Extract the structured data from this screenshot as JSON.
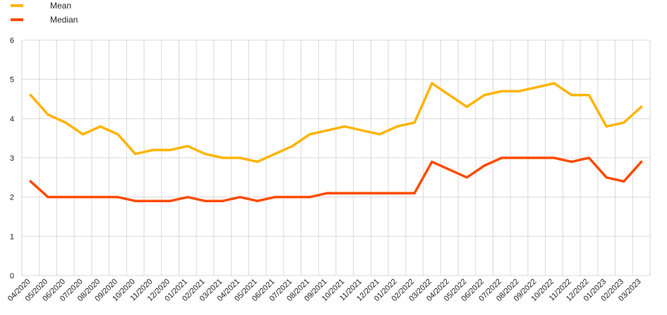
{
  "chart_data": {
    "type": "line",
    "title": "",
    "xlabel": "",
    "ylabel": "",
    "ylim": [
      0,
      6
    ],
    "yticks": [
      0,
      1,
      2,
      3,
      4,
      5,
      6
    ],
    "grid": true,
    "legend_position": "top-left",
    "categories": [
      "04/2020",
      "05/2020",
      "06/2020",
      "07/2020",
      "08/2020",
      "09/2020",
      "10/2020",
      "11/2020",
      "12/2020",
      "01/2021",
      "02/2021",
      "03/2021",
      "04/2021",
      "05/2021",
      "06/2021",
      "07/2021",
      "08/2021",
      "09/2021",
      "10/2021",
      "11/2021",
      "12/2021",
      "01/2022",
      "02/2022",
      "03/2022",
      "04/2022",
      "05/2022",
      "06/2022",
      "07/2022",
      "08/2022",
      "09/2022",
      "10/2022",
      "11/2022",
      "12/2022",
      "01/2023",
      "02/2023",
      "03/2023"
    ],
    "series": [
      {
        "name": "Mean",
        "color": "#FFB400",
        "values": [
          4.6,
          4.1,
          3.9,
          3.6,
          3.8,
          3.6,
          3.1,
          3.2,
          3.2,
          3.3,
          3.1,
          3.0,
          3.0,
          2.9,
          3.1,
          3.3,
          3.6,
          3.7,
          3.8,
          3.7,
          3.6,
          3.8,
          3.9,
          4.9,
          4.6,
          4.3,
          4.6,
          4.7,
          4.7,
          4.8,
          4.9,
          4.6,
          4.6,
          3.8,
          3.9,
          4.3
        ]
      },
      {
        "name": "Median",
        "color": "#FF4B00",
        "values": [
          2.4,
          2.0,
          2.0,
          2.0,
          2.0,
          2.0,
          1.9,
          1.9,
          1.9,
          2.0,
          1.9,
          1.9,
          2.0,
          1.9,
          2.0,
          2.0,
          2.0,
          2.1,
          2.1,
          2.1,
          2.1,
          2.1,
          2.1,
          2.9,
          2.7,
          2.5,
          2.8,
          3.0,
          3.0,
          3.0,
          3.0,
          2.9,
          3.0,
          2.5,
          2.4,
          2.9
        ]
      }
    ]
  }
}
